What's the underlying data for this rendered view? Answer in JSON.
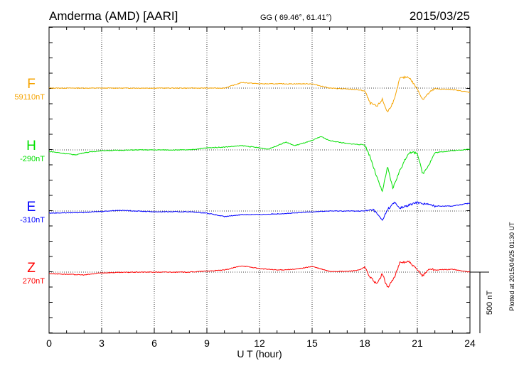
{
  "header": {
    "station": "Amderma (AMD)  [AARI]",
    "coords": "GG ( 69.46°,  61.41°)",
    "date": "2015/03/25"
  },
  "footer": {
    "plotted": "Plotted at 2015/04/25 01:30 UT",
    "scale_label": "500 nT"
  },
  "chart_data": {
    "type": "line",
    "title": "Amderma (AMD)  [AARI]",
    "xlabel": "U T (hour)",
    "ylabel": "",
    "xlim": [
      0,
      24
    ],
    "xticks": [
      "0",
      "3",
      "6",
      "9",
      "12",
      "15",
      "18",
      "21",
      "24"
    ],
    "scale_nT": 500,
    "grid": "dotted vertical every 3 h, dotted baseline per component",
    "series": [
      {
        "name": "F",
        "baseline_label": "59110nT",
        "color": "#f5a300",
        "points": [
          [
            0,
            0
          ],
          [
            10,
            0
          ],
          [
            11,
            46
          ],
          [
            12,
            35
          ],
          [
            15,
            35
          ],
          [
            16,
            0
          ],
          [
            17.5,
            -12
          ],
          [
            18,
            -23
          ],
          [
            18.3,
            -122
          ],
          [
            18.7,
            -151
          ],
          [
            19,
            -93
          ],
          [
            19.3,
            -198
          ],
          [
            19.7,
            -93
          ],
          [
            20,
            81
          ],
          [
            20.5,
            93
          ],
          [
            21,
            -6
          ],
          [
            21.3,
            -93
          ],
          [
            21.7,
            -35
          ],
          [
            22,
            -6
          ],
          [
            23,
            -12
          ],
          [
            24,
            -35
          ]
        ]
      },
      {
        "name": "H",
        "baseline_label": "-290nT",
        "color": "#00e000",
        "points": [
          [
            0,
            -12
          ],
          [
            1.5,
            -41
          ],
          [
            2,
            -23
          ],
          [
            3,
            -6
          ],
          [
            5,
            0
          ],
          [
            8,
            0
          ],
          [
            9,
            17
          ],
          [
            10,
            23
          ],
          [
            11,
            35
          ],
          [
            12,
            17
          ],
          [
            12.5,
            6
          ],
          [
            13.5,
            64
          ],
          [
            14,
            35
          ],
          [
            15,
            76
          ],
          [
            15.5,
            110
          ],
          [
            16,
            76
          ],
          [
            17,
            52
          ],
          [
            18,
            41
          ],
          [
            18.3,
            -52
          ],
          [
            18.7,
            -227
          ],
          [
            19,
            -343
          ],
          [
            19.3,
            -140
          ],
          [
            19.6,
            -314
          ],
          [
            20,
            -169
          ],
          [
            20.5,
            -23
          ],
          [
            21,
            -23
          ],
          [
            21.3,
            -198
          ],
          [
            21.7,
            -110
          ],
          [
            22,
            -23
          ],
          [
            23,
            -6
          ],
          [
            24,
            6
          ]
        ]
      },
      {
        "name": "E",
        "baseline_label": "-310nT",
        "color": "#0000ff",
        "points": [
          [
            0,
            -17
          ],
          [
            2,
            -12
          ],
          [
            4,
            6
          ],
          [
            5,
            0
          ],
          [
            6,
            -6
          ],
          [
            8,
            -6
          ],
          [
            9,
            -17
          ],
          [
            10,
            -46
          ],
          [
            11,
            -29
          ],
          [
            12,
            -29
          ],
          [
            13,
            -23
          ],
          [
            14,
            -17
          ],
          [
            15,
            -6
          ],
          [
            16,
            0
          ],
          [
            18,
            0
          ],
          [
            18.5,
            12
          ],
          [
            19,
            -76
          ],
          [
            19.3,
            12
          ],
          [
            19.7,
            70
          ],
          [
            20,
            23
          ],
          [
            21,
            70
          ],
          [
            21.5,
            58
          ],
          [
            22,
            41
          ],
          [
            23,
            41
          ],
          [
            24,
            64
          ]
        ]
      },
      {
        "name": "Z",
        "baseline_label": "270nT",
        "color": "#ff0000",
        "points": [
          [
            0,
            -12
          ],
          [
            2,
            -23
          ],
          [
            3,
            -6
          ],
          [
            5,
            0
          ],
          [
            8,
            0
          ],
          [
            10,
            17
          ],
          [
            11,
            52
          ],
          [
            12,
            29
          ],
          [
            13,
            17
          ],
          [
            14,
            23
          ],
          [
            15,
            46
          ],
          [
            16,
            6
          ],
          [
            17,
            6
          ],
          [
            17.7,
            17
          ],
          [
            18,
            41
          ],
          [
            18.3,
            -41
          ],
          [
            18.7,
            -99
          ],
          [
            19,
            -12
          ],
          [
            19.3,
            -128
          ],
          [
            19.7,
            -41
          ],
          [
            20,
            76
          ],
          [
            20.5,
            87
          ],
          [
            21,
            17
          ],
          [
            21.3,
            -29
          ],
          [
            21.7,
            29
          ],
          [
            22,
            17
          ],
          [
            23,
            23
          ],
          [
            24,
            0
          ]
        ]
      }
    ]
  }
}
